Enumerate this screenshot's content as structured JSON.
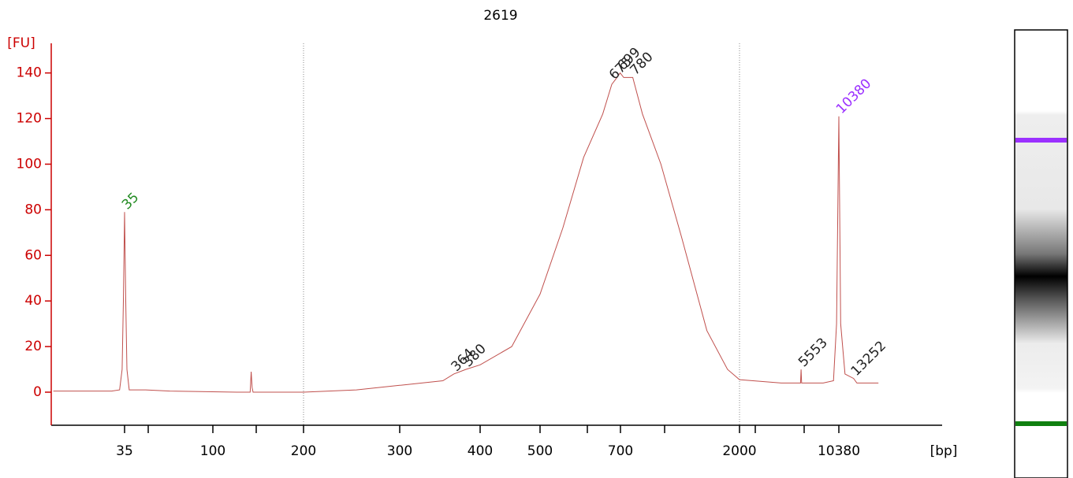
{
  "chart_data": {
    "type": "line",
    "title": "2619",
    "y_label": "[FU]",
    "x_label": "[bp]",
    "axis_color": "#cc0000",
    "ylim": [
      -14.5,
      153
    ],
    "yticks": [
      0,
      20,
      40,
      60,
      80,
      100,
      120,
      140
    ],
    "xticks": [
      35,
      100,
      200,
      300,
      400,
      500,
      700,
      2000,
      10380
    ],
    "x_log_between_ticks": true,
    "smear_range": [
      200,
      2000
    ],
    "series": [
      {
        "color": "#c0504d",
        "x": [
          15,
          30,
          33,
          34,
          34.5,
          35,
          35.5,
          36,
          37,
          45,
          60,
          120,
          133,
          134,
          135,
          136,
          200,
          250,
          300,
          350,
          364,
          380,
          400,
          450,
          500,
          550,
          600,
          650,
          675,
          690,
          699,
          720,
          780,
          850,
          1000,
          1200,
          1500,
          1800,
          2000,
          2500,
          4000,
          5500,
          5553,
          5600,
          8000,
          9500,
          10000,
          10380,
          10700,
          11500,
          13252,
          14000,
          20000
        ],
        "values": [
          0.5,
          0.5,
          1,
          10,
          40,
          79,
          40,
          10,
          1,
          1,
          0.5,
          0,
          0,
          9,
          2,
          0,
          0,
          1,
          3,
          5,
          8,
          10,
          12,
          20,
          43,
          72,
          103,
          122,
          135,
          138,
          140,
          138,
          138,
          122,
          100,
          68,
          27,
          10,
          5.5,
          5,
          4,
          4,
          10,
          4,
          4,
          5,
          30,
          121,
          30,
          8,
          6,
          4,
          4
        ]
      }
    ],
    "annotations": [
      {
        "label": "35",
        "x": 35,
        "y": 79,
        "color": "#228b22"
      },
      {
        "label": "364",
        "x": 364,
        "y": 8,
        "color": "#222222"
      },
      {
        "label": "380",
        "x": 380,
        "y": 10,
        "color": "#222222"
      },
      {
        "label": "675",
        "x": 675,
        "y": 136,
        "color": "#222222"
      },
      {
        "label": "699",
        "x": 699,
        "y": 140,
        "color": "#222222"
      },
      {
        "label": "780",
        "x": 780,
        "y": 138,
        "color": "#222222"
      },
      {
        "label": "5553",
        "x": 5553,
        "y": 10,
        "color": "#222222"
      },
      {
        "label": "10380",
        "x": 10380,
        "y": 121,
        "color": "#9b30ff"
      },
      {
        "label": "13252",
        "x": 13252,
        "y": 6,
        "color": "#222222"
      }
    ]
  }
}
